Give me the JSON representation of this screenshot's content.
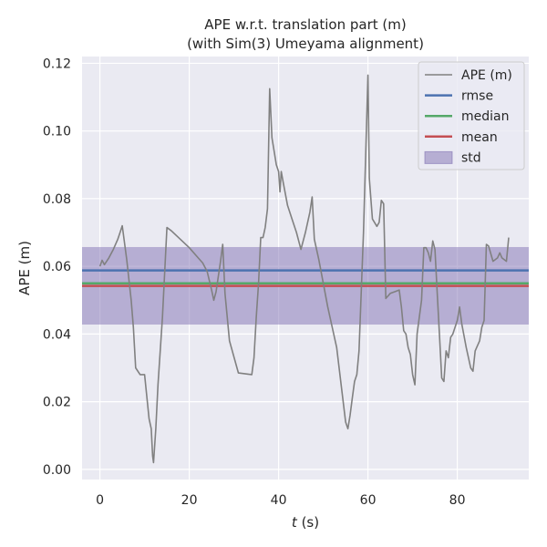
{
  "chart_data": {
    "type": "line",
    "title_line1": "APE w.r.t. translation part (m)",
    "title_line2": "(with Sim(3) Umeyama alignment)",
    "xlabel_italic": "t",
    "xlabel_rest": " (s)",
    "ylabel": "APE (m)",
    "xlim": [
      -4,
      96
    ],
    "ylim": [
      -0.003,
      0.122
    ],
    "xticks": [
      0,
      20,
      40,
      60,
      80
    ],
    "yticks": [
      0.0,
      0.02,
      0.04,
      0.06,
      0.08,
      0.1,
      0.12
    ],
    "ytick_labels": [
      "0.00",
      "0.02",
      "0.04",
      "0.06",
      "0.08",
      "0.10",
      "0.12"
    ],
    "grid": true,
    "legend_position": "top-right",
    "series": [
      {
        "name": "APE (m)",
        "color": "#808080",
        "x": [
          0.0,
          0.5,
          1.0,
          2.0,
          3.0,
          4.0,
          4.5,
          5.0,
          6.0,
          7.0,
          7.5,
          8.0,
          9.0,
          10.0,
          11.0,
          11.5,
          11.8,
          12.0,
          12.5,
          13.0,
          14.0,
          15.0,
          16.0,
          18.0,
          20.0,
          22.0,
          23.0,
          24.0,
          25.0,
          25.5,
          26.0,
          27.0,
          27.5,
          28.0,
          29.0,
          31.0,
          34.0,
          34.5,
          35.0,
          35.5,
          36.0,
          36.5,
          37.0,
          37.5,
          38.0,
          38.5,
          39.0,
          39.5,
          40.0,
          40.3,
          40.6,
          41.0,
          42.0,
          43.0,
          44.0,
          45.0,
          46.0,
          47.0,
          47.5,
          48.0,
          49.0,
          50.0,
          51.0,
          52.0,
          53.0,
          54.0,
          55.0,
          55.5,
          56.0,
          56.5,
          57.0,
          57.5,
          58.0,
          59.0,
          60.0,
          60.3,
          61.0,
          62.0,
          62.5,
          63.0,
          63.5,
          64.0,
          65.0,
          66.0,
          67.0,
          67.5,
          68.0,
          68.5,
          69.0,
          69.5,
          70.0,
          70.5,
          71.0,
          72.0,
          72.5,
          73.0,
          73.5,
          74.0,
          74.5,
          75.0,
          75.5,
          76.0,
          76.5,
          77.0,
          77.5,
          78.0,
          78.5,
          79.0,
          80.0,
          80.5,
          81.0,
          82.0,
          83.0,
          83.5,
          84.0,
          85.0,
          85.5,
          86.0,
          86.5,
          87.0,
          88.0,
          89.0,
          89.5,
          90.0,
          91.0,
          91.5
        ],
        "y": [
          0.06,
          0.0618,
          0.0605,
          0.0625,
          0.065,
          0.068,
          0.07,
          0.072,
          0.062,
          0.05,
          0.042,
          0.03,
          0.028,
          0.028,
          0.015,
          0.012,
          0.004,
          0.002,
          0.012,
          0.025,
          0.045,
          0.0715,
          0.0705,
          0.068,
          0.0655,
          0.0625,
          0.061,
          0.0585,
          0.053,
          0.05,
          0.0525,
          0.0615,
          0.0665,
          0.052,
          0.038,
          0.0285,
          0.028,
          0.033,
          0.045,
          0.055,
          0.0685,
          0.0685,
          0.0715,
          0.077,
          0.1125,
          0.098,
          0.094,
          0.09,
          0.088,
          0.082,
          0.088,
          0.085,
          0.078,
          0.074,
          0.07,
          0.065,
          0.07,
          0.076,
          0.0805,
          0.068,
          0.062,
          0.055,
          0.048,
          0.042,
          0.036,
          0.025,
          0.014,
          0.012,
          0.016,
          0.021,
          0.026,
          0.028,
          0.035,
          0.07,
          0.1165,
          0.086,
          0.074,
          0.0718,
          0.073,
          0.0795,
          0.0785,
          0.0505,
          0.052,
          0.0525,
          0.053,
          0.048,
          0.041,
          0.04,
          0.036,
          0.034,
          0.028,
          0.025,
          0.04,
          0.05,
          0.0655,
          0.0655,
          0.064,
          0.0615,
          0.0675,
          0.065,
          0.052,
          0.04,
          0.027,
          0.026,
          0.035,
          0.033,
          0.039,
          0.04,
          0.044,
          0.048,
          0.043,
          0.036,
          0.03,
          0.029,
          0.035,
          0.038,
          0.042,
          0.044,
          0.0665,
          0.066,
          0.0615,
          0.0625,
          0.064,
          0.0625,
          0.0615,
          0.0685
        ]
      }
    ],
    "reference_lines": [
      {
        "name": "rmse",
        "value": 0.0588,
        "color": "#4c72b0"
      },
      {
        "name": "median",
        "value": 0.055,
        "color": "#55a868"
      },
      {
        "name": "mean",
        "value": 0.0542,
        "color": "#c44e52"
      }
    ],
    "band": {
      "name": "std",
      "from": 0.0428,
      "to": 0.0657,
      "color": "#8172b3"
    }
  }
}
